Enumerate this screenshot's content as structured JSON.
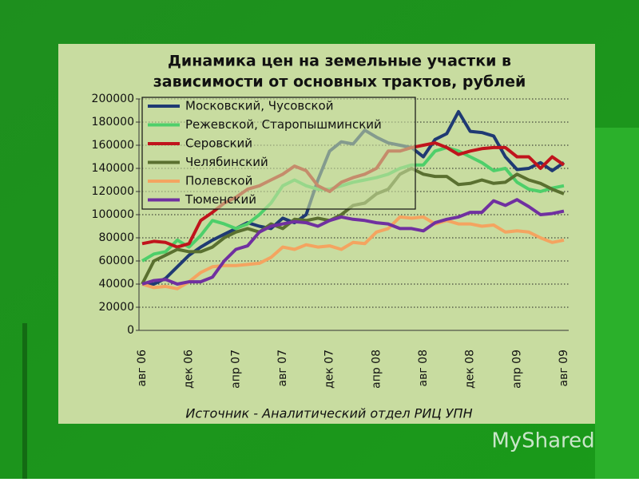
{
  "chart_data": {
    "type": "line",
    "title": [
      "Динамика цен на земельные участки в",
      "зависимости от основных трактов, рублей"
    ],
    "source": "Источник - Аналитический отдел РИЦ УПН",
    "categories": [
      "авг 06",
      null,
      null,
      null,
      "дек 06",
      null,
      null,
      null,
      "апр 07",
      null,
      null,
      null,
      "авг 07",
      null,
      null,
      null,
      "дек 07",
      null,
      null,
      null,
      "апр 08",
      null,
      null,
      null,
      "авг 08",
      null,
      null,
      null,
      "дек 08",
      null,
      null,
      null,
      "апр 09",
      null,
      null,
      null,
      "авг 09"
    ],
    "ylim": [
      0,
      200000
    ],
    "yticks": [
      0,
      20000,
      40000,
      60000,
      80000,
      100000,
      120000,
      140000,
      160000,
      180000,
      200000
    ],
    "grid": true,
    "legend": "top-left",
    "series": [
      {
        "name": "Московский, Чусовской",
        "color": "#1f3a73",
        "values": [
          40000,
          40000,
          45000,
          55000,
          65000,
          72000,
          78000,
          83000,
          88000,
          93000,
          90000,
          88000,
          97000,
          93000,
          100000,
          130000,
          155000,
          163000,
          161000,
          173000,
          167000,
          162000,
          160000,
          158000,
          150000,
          165000,
          170000,
          189000,
          172000,
          171000,
          168000,
          150000,
          139000,
          140000,
          145000,
          138000,
          145000
        ]
      },
      {
        "name": "Режевской, Старопышминский",
        "color": "#4ecf6a",
        "values": [
          60000,
          66000,
          68000,
          78000,
          72000,
          82000,
          95000,
          92000,
          88000,
          92000,
          100000,
          110000,
          125000,
          130000,
          125000,
          122000,
          122000,
          125000,
          128000,
          130000,
          132000,
          135000,
          140000,
          143000,
          143000,
          155000,
          158000,
          155000,
          150000,
          145000,
          138000,
          140000,
          128000,
          122000,
          120000,
          123000,
          125000
        ]
      },
      {
        "name": "Серовский",
        "color": "#c0141c",
        "values": [
          75000,
          77000,
          76000,
          72000,
          75000,
          95000,
          102000,
          110000,
          115000,
          122000,
          125000,
          130000,
          135000,
          142000,
          138000,
          125000,
          120000,
          128000,
          132000,
          135000,
          140000,
          155000,
          155000,
          158000,
          160000,
          162000,
          158000,
          152000,
          155000,
          157000,
          158000,
          158000,
          150000,
          150000,
          140000,
          150000,
          143000
        ]
      },
      {
        "name": "Челябинский",
        "color": "#5a7030",
        "values": [
          40000,
          60000,
          65000,
          70000,
          68000,
          68000,
          72000,
          80000,
          85000,
          88000,
          85000,
          92000,
          88000,
          96000,
          95000,
          97000,
          95000,
          100000,
          108000,
          110000,
          118000,
          122000,
          135000,
          140000,
          135000,
          133000,
          133000,
          126000,
          127000,
          130000,
          127000,
          128000,
          135000,
          130000,
          127000,
          122000,
          118000
        ]
      },
      {
        "name": "Полевской",
        "color": "#f4a460",
        "values": [
          40000,
          37000,
          38000,
          36000,
          42000,
          50000,
          55000,
          56000,
          56000,
          57000,
          58000,
          63000,
          72000,
          70000,
          74000,
          72000,
          73000,
          70000,
          76000,
          75000,
          85000,
          88000,
          98000,
          97000,
          98000,
          92000,
          95000,
          92000,
          92000,
          90000,
          91000,
          85000,
          86000,
          85000,
          80000,
          76000,
          78000
        ]
      },
      {
        "name": "Тюменский",
        "color": "#7030a0",
        "values": [
          40000,
          43000,
          44000,
          40000,
          42000,
          42000,
          46000,
          60000,
          70000,
          73000,
          85000,
          90000,
          92000,
          94000,
          93000,
          90000,
          95000,
          98000,
          96000,
          95000,
          93000,
          92000,
          88000,
          88000,
          86000,
          93000,
          96000,
          98000,
          102000,
          102000,
          112000,
          108000,
          113000,
          107000,
          100000,
          101000,
          103000
        ]
      }
    ]
  },
  "watermark": "MyShared"
}
